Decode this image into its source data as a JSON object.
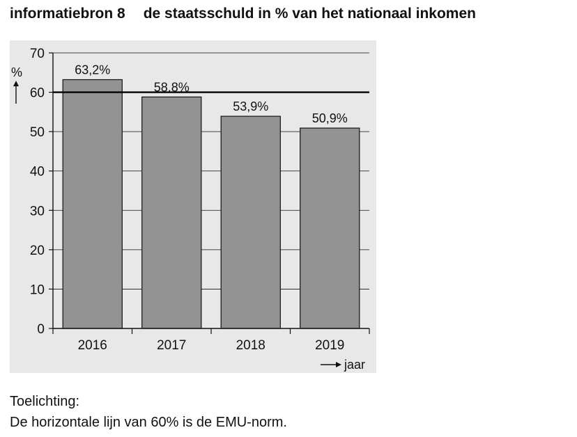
{
  "heading": {
    "source_label": "informatiebron 8",
    "title": "de staatsschuld in % van het nationaal inkomen"
  },
  "chart_data": {
    "type": "bar",
    "categories": [
      "2016",
      "2017",
      "2018",
      "2019"
    ],
    "values": [
      63.2,
      58.8,
      53.9,
      50.9
    ],
    "value_labels": [
      "63,2%",
      "58,8%",
      "53,9%",
      "50,9%"
    ],
    "ylabel": "%",
    "xlabel": "jaar",
    "ylim": [
      0,
      70
    ],
    "yticks": [
      0,
      10,
      20,
      30,
      40,
      50,
      60,
      70
    ],
    "reference_line": 60,
    "grid": true,
    "colors": {
      "bar": "#939393",
      "plot_background": "#e8e8e8",
      "axis": "#111111"
    }
  },
  "note": {
    "label": "Toelichting:",
    "text": "De horizontale lijn van 60% is de EMU-norm."
  }
}
